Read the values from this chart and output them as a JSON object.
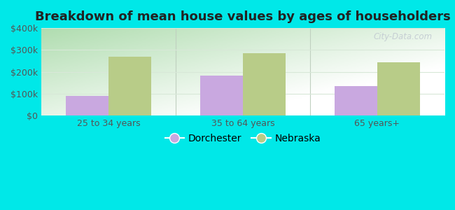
{
  "title": "Breakdown of mean house values by ages of householders",
  "categories": [
    "25 to 34 years",
    "35 to 64 years",
    "65 years+"
  ],
  "dorchester_values": [
    90000,
    183000,
    133000
  ],
  "nebraska_values": [
    268000,
    285000,
    243000
  ],
  "dorchester_color": "#c9a8e0",
  "nebraska_color": "#b8cc88",
  "background_outer": "#00e8e8",
  "background_inner_topleft": "#b0ddb0",
  "background_inner_white": "#ffffff",
  "ylim": [
    0,
    400000
  ],
  "yticks": [
    0,
    100000,
    200000,
    300000,
    400000
  ],
  "ytick_labels": [
    "$0",
    "$100k",
    "$200k",
    "$300k",
    "$400k"
  ],
  "bar_width": 0.32,
  "legend_labels": [
    "Dorchester",
    "Nebraska"
  ],
  "title_fontsize": 13,
  "tick_fontsize": 9,
  "legend_fontsize": 10,
  "watermark": "City-Data.com",
  "watermark_color": "#c0c8d0",
  "grid_color": "#d8e8d8",
  "divider_color": "#c0d0c0"
}
